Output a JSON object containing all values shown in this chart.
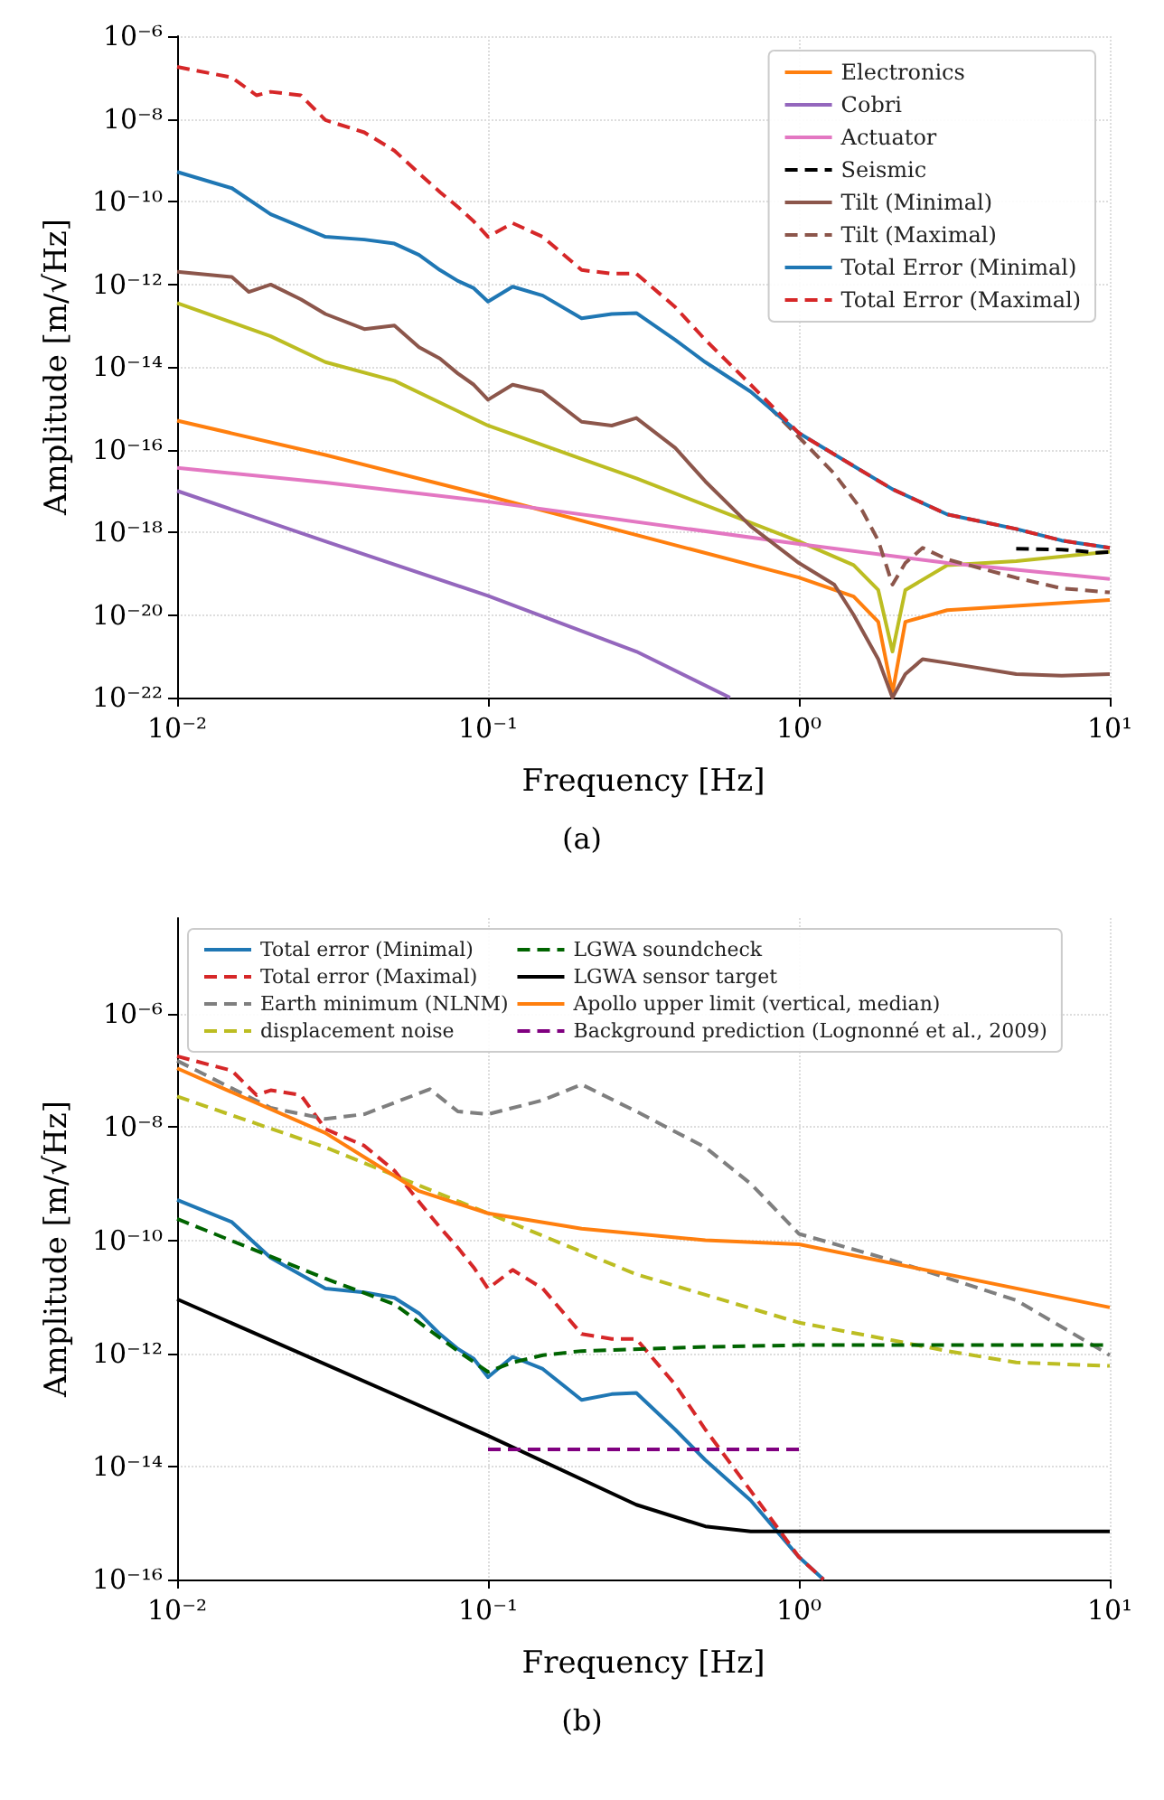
{
  "chart_data": [
    {
      "type": "line",
      "xlabel": "Frequency [Hz]",
      "ylabel": "Amplitude [m/√Hz]",
      "annotations": [
        "(a)"
      ],
      "log": "xy",
      "grid": true,
      "legend": "top right",
      "xlim": [
        0.01,
        10
      ],
      "xticks": [
        {
          "value": 0.01,
          "label": "10⁻²"
        },
        {
          "value": 0.1,
          "label": "10⁻¹"
        },
        {
          "value": 1,
          "label": "10⁰"
        },
        {
          "value": 10,
          "label": "10¹"
        }
      ],
      "ylim": [
        1e-22,
        1e-06
      ],
      "yticks": [
        {
          "value": 1e-22,
          "label": "10⁻²²"
        },
        {
          "value": 1e-20,
          "label": "10⁻²⁰"
        },
        {
          "value": 1e-18,
          "label": "10⁻¹⁸"
        },
        {
          "value": 1e-16,
          "label": "10⁻¹⁶"
        },
        {
          "value": 1e-14,
          "label": "10⁻¹⁴"
        },
        {
          "value": 1e-12,
          "label": "10⁻¹²"
        },
        {
          "value": 1e-10,
          "label": "10⁻¹⁰"
        },
        {
          "value": 1e-08,
          "label": "10⁻⁸"
        },
        {
          "value": 1e-06,
          "label": "10⁻⁶"
        }
      ],
      "series": [
        {
          "color": "#bcbd22",
          "line_style": "solid",
          "x": [
            0.01,
            0.02,
            0.03,
            0.05,
            0.1,
            0.3,
            1,
            1.5,
            1.8,
            2,
            2.2,
            3,
            5,
            10
          ],
          "values": [
            3.5e-13,
            5.5e-14,
            1.3e-14,
            4.6e-15,
            3.8e-16,
            2e-17,
            6e-19,
            1.6e-19,
            4e-20,
            1.3e-21,
            4e-20,
            1.6e-19,
            2e-19,
            3.4e-19
          ]
        },
        {
          "name": "Electronics",
          "color": "#ff7f0e",
          "line_style": "solid",
          "x": [
            0.01,
            0.03,
            0.1,
            1,
            1.5,
            1.8,
            2,
            2.2,
            3,
            10
          ],
          "values": [
            5e-16,
            7.4e-17,
            7.5e-18,
            8e-20,
            2.8e-20,
            6.8e-21,
            1.3e-22,
            6.8e-21,
            1.3e-20,
            2.3e-20
          ]
        },
        {
          "name": "Cobri",
          "color": "#9467bd",
          "line_style": "solid",
          "x": [
            0.01,
            0.03,
            0.1,
            0.3,
            0.6
          ],
          "values": [
            1e-17,
            6e-19,
            2.9e-20,
            1.3e-21,
            1e-22
          ]
        },
        {
          "name": "Actuator",
          "color": "#e377c2",
          "line_style": "solid",
          "x": [
            0.01,
            0.03,
            0.1,
            1,
            3,
            10
          ],
          "values": [
            3.6e-17,
            1.6e-17,
            5.5e-18,
            5.2e-19,
            1.8e-19,
            7.4e-20
          ]
        },
        {
          "name": "Seismic",
          "color": "#000000",
          "line_style": "dashed",
          "x": [
            5,
            7,
            8,
            9,
            10
          ],
          "values": [
            4e-19,
            3.8e-19,
            3.5e-19,
            3.2e-19,
            3.3e-19
          ]
        },
        {
          "name": "Tilt (Minimal)",
          "color": "#8c564b",
          "line_style": "solid",
          "x": [
            0.01,
            0.015,
            0.017,
            0.02,
            0.025,
            0.03,
            0.04,
            0.05,
            0.06,
            0.07,
            0.08,
            0.09,
            0.1,
            0.12,
            0.15,
            0.2,
            0.25,
            0.3,
            0.4,
            0.5,
            0.7,
            1,
            1.3,
            1.5,
            1.8,
            2,
            2.2,
            2.5,
            3,
            5,
            7,
            10
          ],
          "values": [
            2e-12,
            1.5e-12,
            6.5e-13,
            9.8e-13,
            4.3e-13,
            1.9e-13,
            8.2e-14,
            1e-13,
            3e-14,
            1.6e-14,
            6.9e-15,
            3.7e-15,
            1.6e-15,
            3.7e-15,
            2.5e-15,
            4.7e-16,
            3.8e-16,
            5.8e-16,
            1.1e-16,
            1.7e-17,
            1.4e-18,
            1.8e-19,
            5.4e-20,
            1e-20,
            8.5e-22,
            1e-22,
            3.7e-22,
            8.5e-22,
            6.9e-22,
            3.7e-22,
            3.4e-22,
            3.7e-22
          ]
        },
        {
          "name": "Tilt (Maximal)",
          "color": "#8c564b",
          "line_style": "dashed",
          "x": [
            0.8,
            1,
            1.3,
            1.6,
            1.8,
            2,
            2.2,
            2.5,
            3,
            5,
            7,
            10
          ],
          "values": [
            1.1e-15,
            2e-16,
            2.6e-17,
            3.3e-18,
            6.3e-19,
            5.4e-20,
            1.8e-19,
            4.2e-19,
            2.2e-19,
            7.9e-20,
            4.4e-20,
            3.5e-20
          ]
        },
        {
          "name": "Total Error (Minimal)",
          "color": "#1f77b4",
          "line_style": "solid",
          "x": [
            0.01,
            0.015,
            0.02,
            0.03,
            0.04,
            0.05,
            0.06,
            0.07,
            0.08,
            0.09,
            0.1,
            0.12,
            0.15,
            0.2,
            0.25,
            0.3,
            0.4,
            0.5,
            0.7,
            1,
            1.5,
            2,
            3,
            5,
            7,
            10
          ],
          "values": [
            5.2e-10,
            2.1e-10,
            4.9e-11,
            1.4e-11,
            1.2e-11,
            9.6e-12,
            5.1e-12,
            2.2e-12,
            1.2e-12,
            8e-13,
            3.8e-13,
            8.7e-13,
            5.3e-13,
            1.5e-13,
            1.9e-13,
            2e-13,
            4.5e-14,
            1.3e-14,
            2.5e-15,
            2.5e-16,
            4e-17,
            1.1e-17,
            2.7e-18,
            1.2e-18,
            6.3e-19,
            4.2e-19
          ]
        },
        {
          "name": "Total Error (Maximal)",
          "color": "#d62728",
          "line_style": "dashed",
          "x": [
            0.01,
            0.015,
            0.018,
            0.02,
            0.025,
            0.03,
            0.04,
            0.05,
            0.06,
            0.07,
            0.08,
            0.09,
            0.1,
            0.12,
            0.15,
            0.2,
            0.25,
            0.3,
            0.4,
            0.5,
            0.7,
            1,
            1.5,
            2,
            3,
            5,
            7,
            10
          ],
          "values": [
            1.8e-07,
            1e-07,
            3.7e-08,
            4.5e-08,
            3.7e-08,
            9.3e-09,
            4.7e-09,
            1.7e-09,
            4.8e-10,
            1.7e-10,
            7.4e-11,
            3.3e-11,
            1.4e-11,
            3e-11,
            1.4e-11,
            2.2e-12,
            1.8e-12,
            1.8e-12,
            2.8e-13,
            4.5e-14,
            3.7e-15,
            2.5e-16,
            4e-17,
            1.1e-17,
            2.7e-18,
            1.2e-18,
            6.3e-19,
            4.2e-19
          ]
        }
      ]
    },
    {
      "type": "line",
      "xlabel": "Frequency [Hz]",
      "ylabel": "Amplitude [m/√Hz]",
      "annotations": [
        "(b)"
      ],
      "log": "xy",
      "grid": true,
      "legend": "top",
      "xlim": [
        0.01,
        10
      ],
      "xticks": [
        {
          "value": 0.01,
          "label": "10⁻²"
        },
        {
          "value": 0.1,
          "label": "10⁻¹"
        },
        {
          "value": 1,
          "label": "10⁰"
        },
        {
          "value": 10,
          "label": "10¹"
        }
      ],
      "ylim": [
        1e-16,
        5e-05
      ],
      "yticks": [
        {
          "value": 1e-16,
          "label": "10⁻¹⁶"
        },
        {
          "value": 1e-14,
          "label": "10⁻¹⁴"
        },
        {
          "value": 1e-12,
          "label": "10⁻¹²"
        },
        {
          "value": 1e-10,
          "label": "10⁻¹⁰"
        },
        {
          "value": 1e-08,
          "label": "10⁻⁸"
        },
        {
          "value": 1e-06,
          "label": "10⁻⁶"
        }
      ],
      "series": [
        {
          "name": "Total error (Minimal)",
          "color": "#1f77b4",
          "line_style": "solid",
          "x": [
            0.01,
            0.015,
            0.02,
            0.03,
            0.04,
            0.05,
            0.06,
            0.07,
            0.08,
            0.09,
            0.1,
            0.12,
            0.15,
            0.2,
            0.25,
            0.3,
            0.4,
            0.5,
            0.7,
            1,
            1.2
          ],
          "values": [
            5.2e-10,
            2.1e-10,
            4.9e-11,
            1.4e-11,
            1.2e-11,
            9.6e-12,
            5.1e-12,
            2.2e-12,
            1.2e-12,
            8e-13,
            3.8e-13,
            8.7e-13,
            5.3e-13,
            1.5e-13,
            1.9e-13,
            2e-13,
            4.5e-14,
            1.3e-14,
            2.5e-15,
            2.5e-16,
            1e-16
          ]
        },
        {
          "name": "Total error (Maximal)",
          "color": "#d62728",
          "line_style": "dashed",
          "x": [
            0.01,
            0.015,
            0.018,
            0.02,
            0.025,
            0.03,
            0.04,
            0.05,
            0.06,
            0.07,
            0.08,
            0.09,
            0.1,
            0.12,
            0.15,
            0.2,
            0.25,
            0.3,
            0.4,
            0.5,
            0.7,
            1,
            1.2
          ],
          "values": [
            1.8e-07,
            1e-07,
            3.7e-08,
            4.5e-08,
            3.7e-08,
            9.3e-09,
            4.7e-09,
            1.7e-09,
            4.8e-10,
            1.7e-10,
            7.4e-11,
            3.3e-11,
            1.4e-11,
            3e-11,
            1.4e-11,
            2.2e-12,
            1.8e-12,
            1.8e-12,
            2.8e-13,
            4.5e-14,
            3.7e-15,
            2.5e-16,
            1e-16
          ]
        },
        {
          "name": "Earth minimum (NLNM)",
          "color": "#7f7f7f",
          "line_style": "dashed",
          "x": [
            0.01,
            0.02,
            0.03,
            0.04,
            0.065,
            0.08,
            0.1,
            0.15,
            0.2,
            0.3,
            0.5,
            0.7,
            1,
            2,
            5,
            10
          ],
          "values": [
            1.5e-07,
            2.2e-08,
            1.4e-08,
            1.7e-08,
            4.7e-08,
            1.9e-08,
            1.7e-08,
            3e-08,
            5.7e-08,
            1.9e-08,
            4.4e-09,
            1e-09,
            1.3e-10,
            4.4e-11,
            8.7e-12,
            9.3e-13
          ]
        },
        {
          "name": "displacement noise",
          "color": "#bcbd22",
          "line_style": "dashed",
          "x": [
            0.01,
            0.03,
            0.1,
            0.3,
            1,
            2,
            3,
            5,
            10
          ],
          "values": [
            3.5e-08,
            4.4e-09,
            3e-10,
            2.5e-11,
            3.5e-12,
            1.7e-12,
            1.1e-12,
            6.9e-13,
            6e-13
          ]
        },
        {
          "name": "LGWA soundcheck",
          "color": "#006400",
          "line_style": "dashed",
          "x": [
            0.01,
            0.03,
            0.05,
            0.08,
            0.1,
            0.12,
            0.15,
            0.2,
            0.5,
            1,
            10
          ],
          "values": [
            2.4e-10,
            2.1e-11,
            7.4e-12,
            1.1e-12,
            4.7e-13,
            6.9e-13,
            9.3e-13,
            1.1e-12,
            1.3e-12,
            1.4e-12,
            1.4e-12
          ]
        },
        {
          "name": "LGWA sensor target",
          "color": "#000000",
          "line_style": "solid",
          "x": [
            0.01,
            0.1,
            0.3,
            0.5,
            0.7,
            1,
            10
          ],
          "values": [
            9.1e-12,
            3.5e-14,
            2.1e-15,
            8.7e-16,
            7.1e-16,
            7.1e-16,
            7.1e-16
          ]
        },
        {
          "name": "Apollo upper limit (vertical, median)",
          "color": "#ff7f0e",
          "line_style": "solid",
          "x": [
            0.01,
            0.03,
            0.06,
            0.1,
            0.2,
            0.5,
            1,
            10
          ],
          "values": [
            1.1e-07,
            7.9e-09,
            7.4e-10,
            3e-10,
            1.6e-10,
            1e-10,
            8.5e-11,
            6.5e-12
          ]
        },
        {
          "name": "Background prediction (Lognonné et al., 2009)",
          "color": "#800080",
          "line_style": "dashed",
          "x": [
            0.1,
            1
          ],
          "values": [
            2e-14,
            2e-14
          ]
        }
      ]
    }
  ]
}
